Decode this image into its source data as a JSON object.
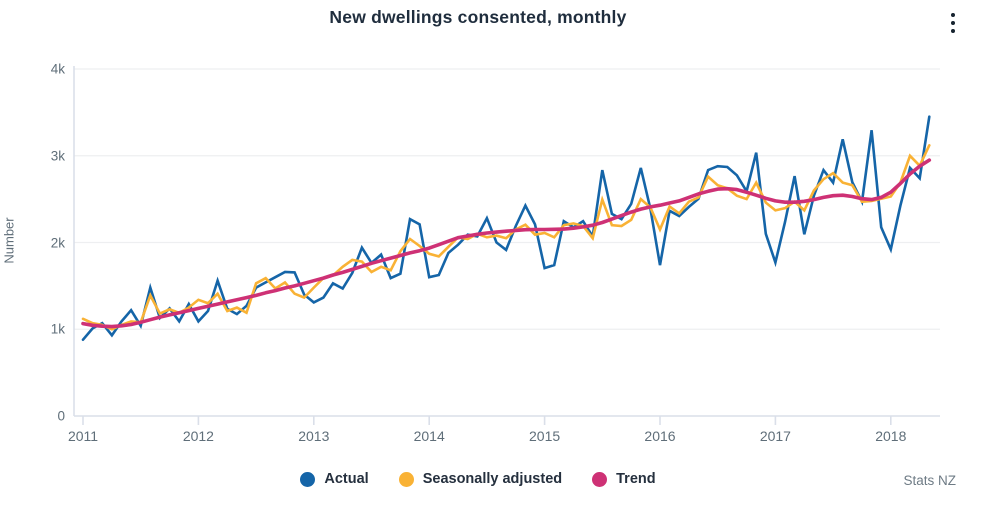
{
  "header": {
    "title": "New dwellings consented, monthly",
    "menu_icon": "kebab-menu"
  },
  "source": {
    "label": "Stats NZ"
  },
  "chart_data": {
    "type": "line",
    "title": "New dwellings consented, monthly",
    "xlabel": "",
    "ylabel": "Number",
    "x_start": "2011-01",
    "x_frequency": "monthly",
    "x_tick_labels": [
      "2011",
      "2012",
      "2013",
      "2014",
      "2015",
      "2016",
      "2017",
      "2018"
    ],
    "y_tick_labels": [
      "0",
      "1k",
      "2k",
      "3k",
      "4k"
    ],
    "y_tick_values": [
      0,
      1000,
      2000,
      3000,
      4000
    ],
    "ylim": [
      0,
      4000
    ],
    "grid": "horizontal",
    "legend_position": "bottom",
    "series": [
      {
        "name": "Actual",
        "color": "#1565a8",
        "values": [
          880,
          1010,
          1070,
          930,
          1090,
          1220,
          1040,
          1480,
          1130,
          1240,
          1090,
          1290,
          1090,
          1210,
          1560,
          1235,
          1175,
          1270,
          1480,
          1540,
          1600,
          1660,
          1655,
          1400,
          1310,
          1365,
          1530,
          1470,
          1650,
          1940,
          1765,
          1860,
          1590,
          1640,
          2270,
          2210,
          1600,
          1625,
          1880,
          1975,
          2090,
          2070,
          2280,
          2000,
          1915,
          2190,
          2425,
          2210,
          1705,
          1740,
          2245,
          2175,
          2245,
          2070,
          2835,
          2330,
          2270,
          2445,
          2860,
          2390,
          1740,
          2365,
          2305,
          2410,
          2505,
          2835,
          2880,
          2870,
          2775,
          2590,
          3035,
          2100,
          1770,
          2235,
          2765,
          2095,
          2540,
          2835,
          2690,
          3190,
          2695,
          2470,
          3295,
          2175,
          1920,
          2425,
          2860,
          2740,
          3450
        ]
      },
      {
        "name": "Seasonally adjusted",
        "color": "#f9b235",
        "values": [
          1120,
          1070,
          1050,
          1000,
          1050,
          1090,
          1080,
          1390,
          1180,
          1230,
          1190,
          1250,
          1340,
          1300,
          1410,
          1210,
          1250,
          1190,
          1530,
          1590,
          1470,
          1540,
          1410,
          1365,
          1480,
          1590,
          1620,
          1720,
          1800,
          1780,
          1660,
          1720,
          1680,
          1900,
          2040,
          1960,
          1870,
          1840,
          1950,
          2060,
          2040,
          2100,
          2060,
          2080,
          2050,
          2150,
          2205,
          2090,
          2110,
          2060,
          2200,
          2220,
          2190,
          2050,
          2495,
          2200,
          2190,
          2260,
          2500,
          2405,
          2150,
          2415,
          2335,
          2470,
          2520,
          2760,
          2660,
          2625,
          2540,
          2500,
          2690,
          2460,
          2370,
          2395,
          2470,
          2370,
          2600,
          2730,
          2800,
          2690,
          2660,
          2470,
          2480,
          2505,
          2530,
          2690,
          3000,
          2885,
          3120
        ]
      },
      {
        "name": "Trend",
        "color": "#ce3175",
        "values": [
          1065,
          1045,
          1035,
          1030,
          1040,
          1055,
          1080,
          1110,
          1140,
          1165,
          1190,
          1215,
          1240,
          1265,
          1290,
          1315,
          1340,
          1365,
          1390,
          1420,
          1445,
          1475,
          1500,
          1530,
          1560,
          1590,
          1625,
          1655,
          1690,
          1725,
          1760,
          1790,
          1820,
          1850,
          1880,
          1905,
          1935,
          1975,
          2015,
          2055,
          2075,
          2095,
          2110,
          2120,
          2130,
          2140,
          2148,
          2150,
          2150,
          2152,
          2155,
          2165,
          2180,
          2200,
          2230,
          2270,
          2310,
          2350,
          2385,
          2410,
          2430,
          2455,
          2480,
          2520,
          2560,
          2590,
          2615,
          2620,
          2610,
          2580,
          2545,
          2510,
          2480,
          2465,
          2465,
          2475,
          2495,
          2520,
          2540,
          2545,
          2530,
          2505,
          2495,
          2520,
          2580,
          2680,
          2790,
          2880,
          2950
        ]
      }
    ]
  }
}
